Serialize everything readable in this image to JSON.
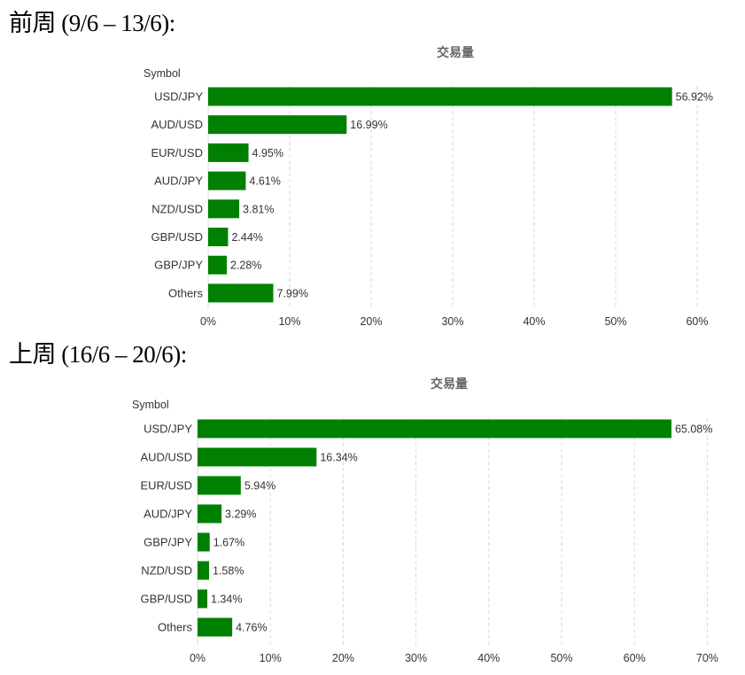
{
  "sections": [
    {
      "heading": "前周 (9/6 – 13/6):"
    },
    {
      "heading": "上周 (16/6 – 20/6):"
    }
  ],
  "chart_data": [
    {
      "type": "bar",
      "orientation": "horizontal",
      "title": "交易量",
      "ylabel": "Symbol",
      "categories": [
        "USD/JPY",
        "AUD/USD",
        "EUR/USD",
        "AUD/JPY",
        "NZD/USD",
        "GBP/USD",
        "GBP/JPY",
        "Others"
      ],
      "values": [
        56.92,
        16.99,
        4.95,
        4.61,
        3.81,
        2.44,
        2.28,
        7.99
      ],
      "value_labels": [
        "56.92%",
        "16.99%",
        "4.95%",
        "4.61%",
        "3.81%",
        "2.44%",
        "2.28%",
        "7.99%"
      ],
      "xlim": [
        0,
        60
      ],
      "xticks": [
        0,
        10,
        20,
        30,
        40,
        50,
        60
      ],
      "xtick_labels": [
        "0%",
        "10%",
        "20%",
        "30%",
        "40%",
        "50%",
        "60%"
      ],
      "grid": "vertical dashed",
      "bar_color": "#008000"
    },
    {
      "type": "bar",
      "orientation": "horizontal",
      "title": "交易量",
      "ylabel": "Symbol",
      "categories": [
        "USD/JPY",
        "AUD/USD",
        "EUR/USD",
        "AUD/JPY",
        "GBP/JPY",
        "NZD/USD",
        "GBP/USD",
        "Others"
      ],
      "values": [
        65.08,
        16.34,
        5.94,
        3.29,
        1.67,
        1.58,
        1.34,
        4.76
      ],
      "value_labels": [
        "65.08%",
        "16.34%",
        "5.94%",
        "3.29%",
        "1.67%",
        "1.58%",
        "1.34%",
        "4.76%"
      ],
      "xlim": [
        0,
        70
      ],
      "xticks": [
        0,
        10,
        20,
        30,
        40,
        50,
        60,
        70
      ],
      "xtick_labels": [
        "0%",
        "10%",
        "20%",
        "30%",
        "40%",
        "50%",
        "60%",
        "70%"
      ],
      "grid": "vertical dashed",
      "bar_color": "#008000"
    }
  ]
}
